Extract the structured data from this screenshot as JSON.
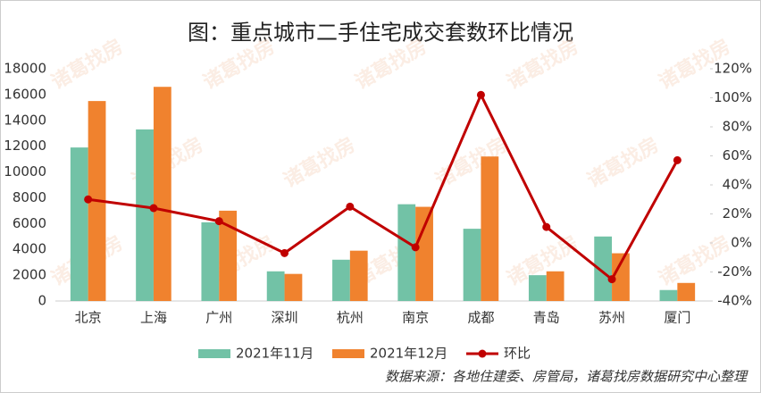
{
  "chart_data": {
    "type": "bar-line",
    "title": "图：重点城市二手住宅成交套数环比情况",
    "categories": [
      "北京",
      "上海",
      "广州",
      "深圳",
      "杭州",
      "南京",
      "成都",
      "青岛",
      "苏州",
      "厦门"
    ],
    "series": [
      {
        "name": "2021年11月",
        "color": "#72c2a6",
        "values": [
          11900,
          13300,
          6100,
          2300,
          3200,
          7500,
          5600,
          2000,
          5000,
          850
        ]
      },
      {
        "name": "2021年12月",
        "color": "#f0822e",
        "values": [
          15500,
          16600,
          7000,
          2100,
          3900,
          7300,
          11200,
          2300,
          3700,
          1400
        ]
      },
      {
        "name": "环比",
        "color": "#c00000",
        "axis": "y2",
        "values": [
          30,
          24,
          15,
          -7,
          25,
          -3,
          102,
          11,
          -25,
          57
        ]
      }
    ],
    "ylim": [
      0,
      18000
    ],
    "yticks": [
      0,
      2000,
      4000,
      6000,
      8000,
      10000,
      12000,
      14000,
      16000,
      18000
    ],
    "y2lim": [
      -40,
      120
    ],
    "y2ticks": [
      {
        "value": -40,
        "label": "-40%"
      },
      {
        "value": -20,
        "label": "-20%"
      },
      {
        "value": 0,
        "label": "0%"
      },
      {
        "value": 20,
        "label": "20%"
      },
      {
        "value": 40,
        "label": "40%"
      },
      {
        "value": 60,
        "label": "60%"
      },
      {
        "value": 80,
        "label": "80%"
      },
      {
        "value": 100,
        "label": "100%"
      },
      {
        "value": 120,
        "label": "120%"
      }
    ],
    "legend": "bottom",
    "source": "数据来源：各地住建委、房管局，诸葛找房数据研究中心整理",
    "watermark": "诸葛找房"
  }
}
